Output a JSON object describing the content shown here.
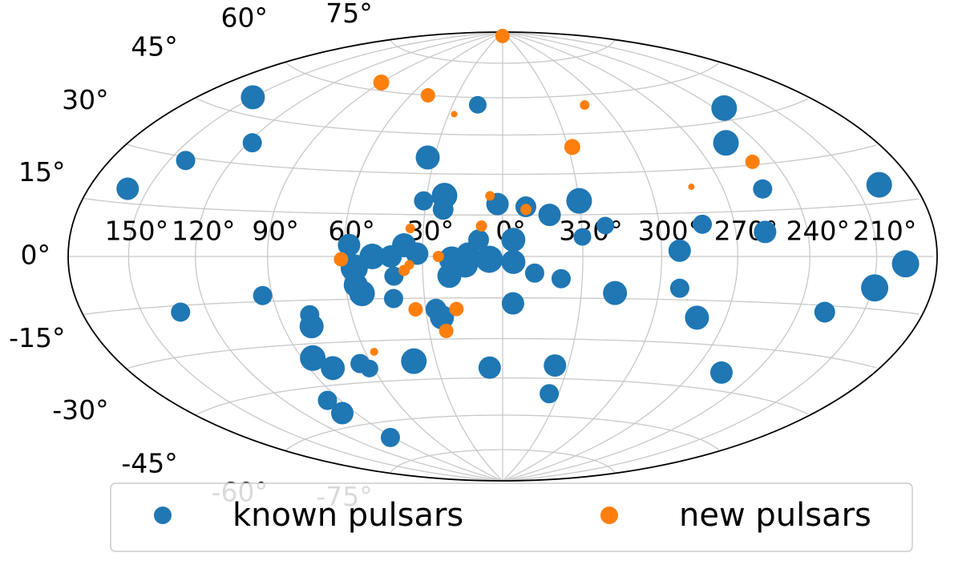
{
  "chart_data": {
    "type": "scatter",
    "projection": "hammer",
    "grid": true,
    "legend": "bottom",
    "xticks": [
      {
        "value": 150,
        "label": "150°"
      },
      {
        "value": 120,
        "label": "120°"
      },
      {
        "value": 90,
        "label": "90°"
      },
      {
        "value": 60,
        "label": "60°"
      },
      {
        "value": 30,
        "label": "30°"
      },
      {
        "value": 0,
        "label": "0°"
      },
      {
        "value": 330,
        "label": "330°"
      },
      {
        "value": 300,
        "label": "300°"
      },
      {
        "value": 270,
        "label": "270°"
      },
      {
        "value": 240,
        "label": "240°"
      },
      {
        "value": 210,
        "label": "210°"
      }
    ],
    "yticks": [
      {
        "value": -75,
        "label": "-75°"
      },
      {
        "value": -60,
        "label": "-60°"
      },
      {
        "value": -45,
        "label": "-45°"
      },
      {
        "value": -30,
        "label": "-30°"
      },
      {
        "value": -15,
        "label": "-15°"
      },
      {
        "value": 0,
        "label": "0°"
      },
      {
        "value": 15,
        "label": "15°"
      },
      {
        "value": 30,
        "label": "30°"
      },
      {
        "value": 45,
        "label": "45°"
      },
      {
        "value": 60,
        "label": "60°"
      },
      {
        "value": 75,
        "label": "75°"
      }
    ],
    "series": [
      {
        "name": "known pulsars",
        "color": "#1f77b4",
        "x": [
          150,
          15,
          118,
          142,
          160,
          33,
          235,
          255,
          253,
          198,
          258,
          196,
          209,
          228,
          282,
          292,
          293,
          283,
          321,
          330,
          330,
          342,
          351,
          2,
          23,
          23,
          31,
          356,
          356,
          5,
          14,
          20,
          26,
          24,
          348,
          338,
          317,
          356,
          37,
          42,
          49,
          56,
          56,
          54,
          41,
          42,
          58,
          94,
          132,
          77,
          78,
          85,
          79,
          65,
          62,
          40,
          6,
          336,
          335,
          256,
          97,
          98,
          92,
          9,
          13,
          19,
          32
        ],
        "values": [
          50,
          57,
          37,
          29,
          19,
          36,
          49,
          38,
          22,
          20,
          8,
          -2,
          -9,
          -17,
          -21,
          -11,
          2,
          11,
          11,
          7,
          20,
          15,
          18,
          19,
          22,
          17,
          20,
          6,
          -2,
          -1,
          -3,
          -7,
          -19,
          -22,
          -6,
          -8,
          -13,
          -17,
          4,
          0,
          0,
          -4,
          -10,
          -13,
          -7,
          -15,
          4,
          -13,
          -17,
          -20,
          -24,
          -35,
          -39,
          -38,
          -40,
          -38,
          -41,
          -40,
          -51,
          -39,
          -50,
          -55,
          -66,
          6,
          1,
          -1,
          1
        ],
        "sizes": [
          225,
          121,
          144,
          144,
          196,
          225,
          256,
          256,
          144,
          256,
          196,
          289,
          289,
          169,
          225,
          144,
          196,
          144,
          121,
          121,
          256,
          196,
          169,
          196,
          256,
          169,
          144,
          225,
          225,
          289,
          256,
          225,
          169,
          225,
          144,
          144,
          225,
          196,
          225,
          196,
          256,
          289,
          225,
          256,
          144,
          144,
          196,
          144,
          144,
          144,
          225,
          256,
          225,
          144,
          121,
          256,
          196,
          196,
          144,
          196,
          144,
          196,
          144,
          169,
          196,
          256,
          196
        ]
      },
      {
        "name": "new pulsars",
        "color": "#ff7f0e",
        "x": [
          1,
          90,
          49,
          27,
          311,
          328,
          250,
          283,
          5,
          351,
          8,
          35,
          61,
          24,
          35,
          37,
          34,
          18,
          23,
          56
        ],
        "values": [
          88,
          63,
          60,
          53,
          56,
          40,
          31,
          24,
          22,
          17,
          11,
          10,
          -1,
          0,
          -3,
          -5,
          -19,
          -19,
          -27,
          -34
        ],
        "sizes": [
          81,
          100,
          81,
          16,
          36,
          100,
          81,
          16,
          36,
          49,
          49,
          36,
          81,
          49,
          36,
          49,
          81,
          81,
          81,
          25
        ]
      }
    ]
  }
}
